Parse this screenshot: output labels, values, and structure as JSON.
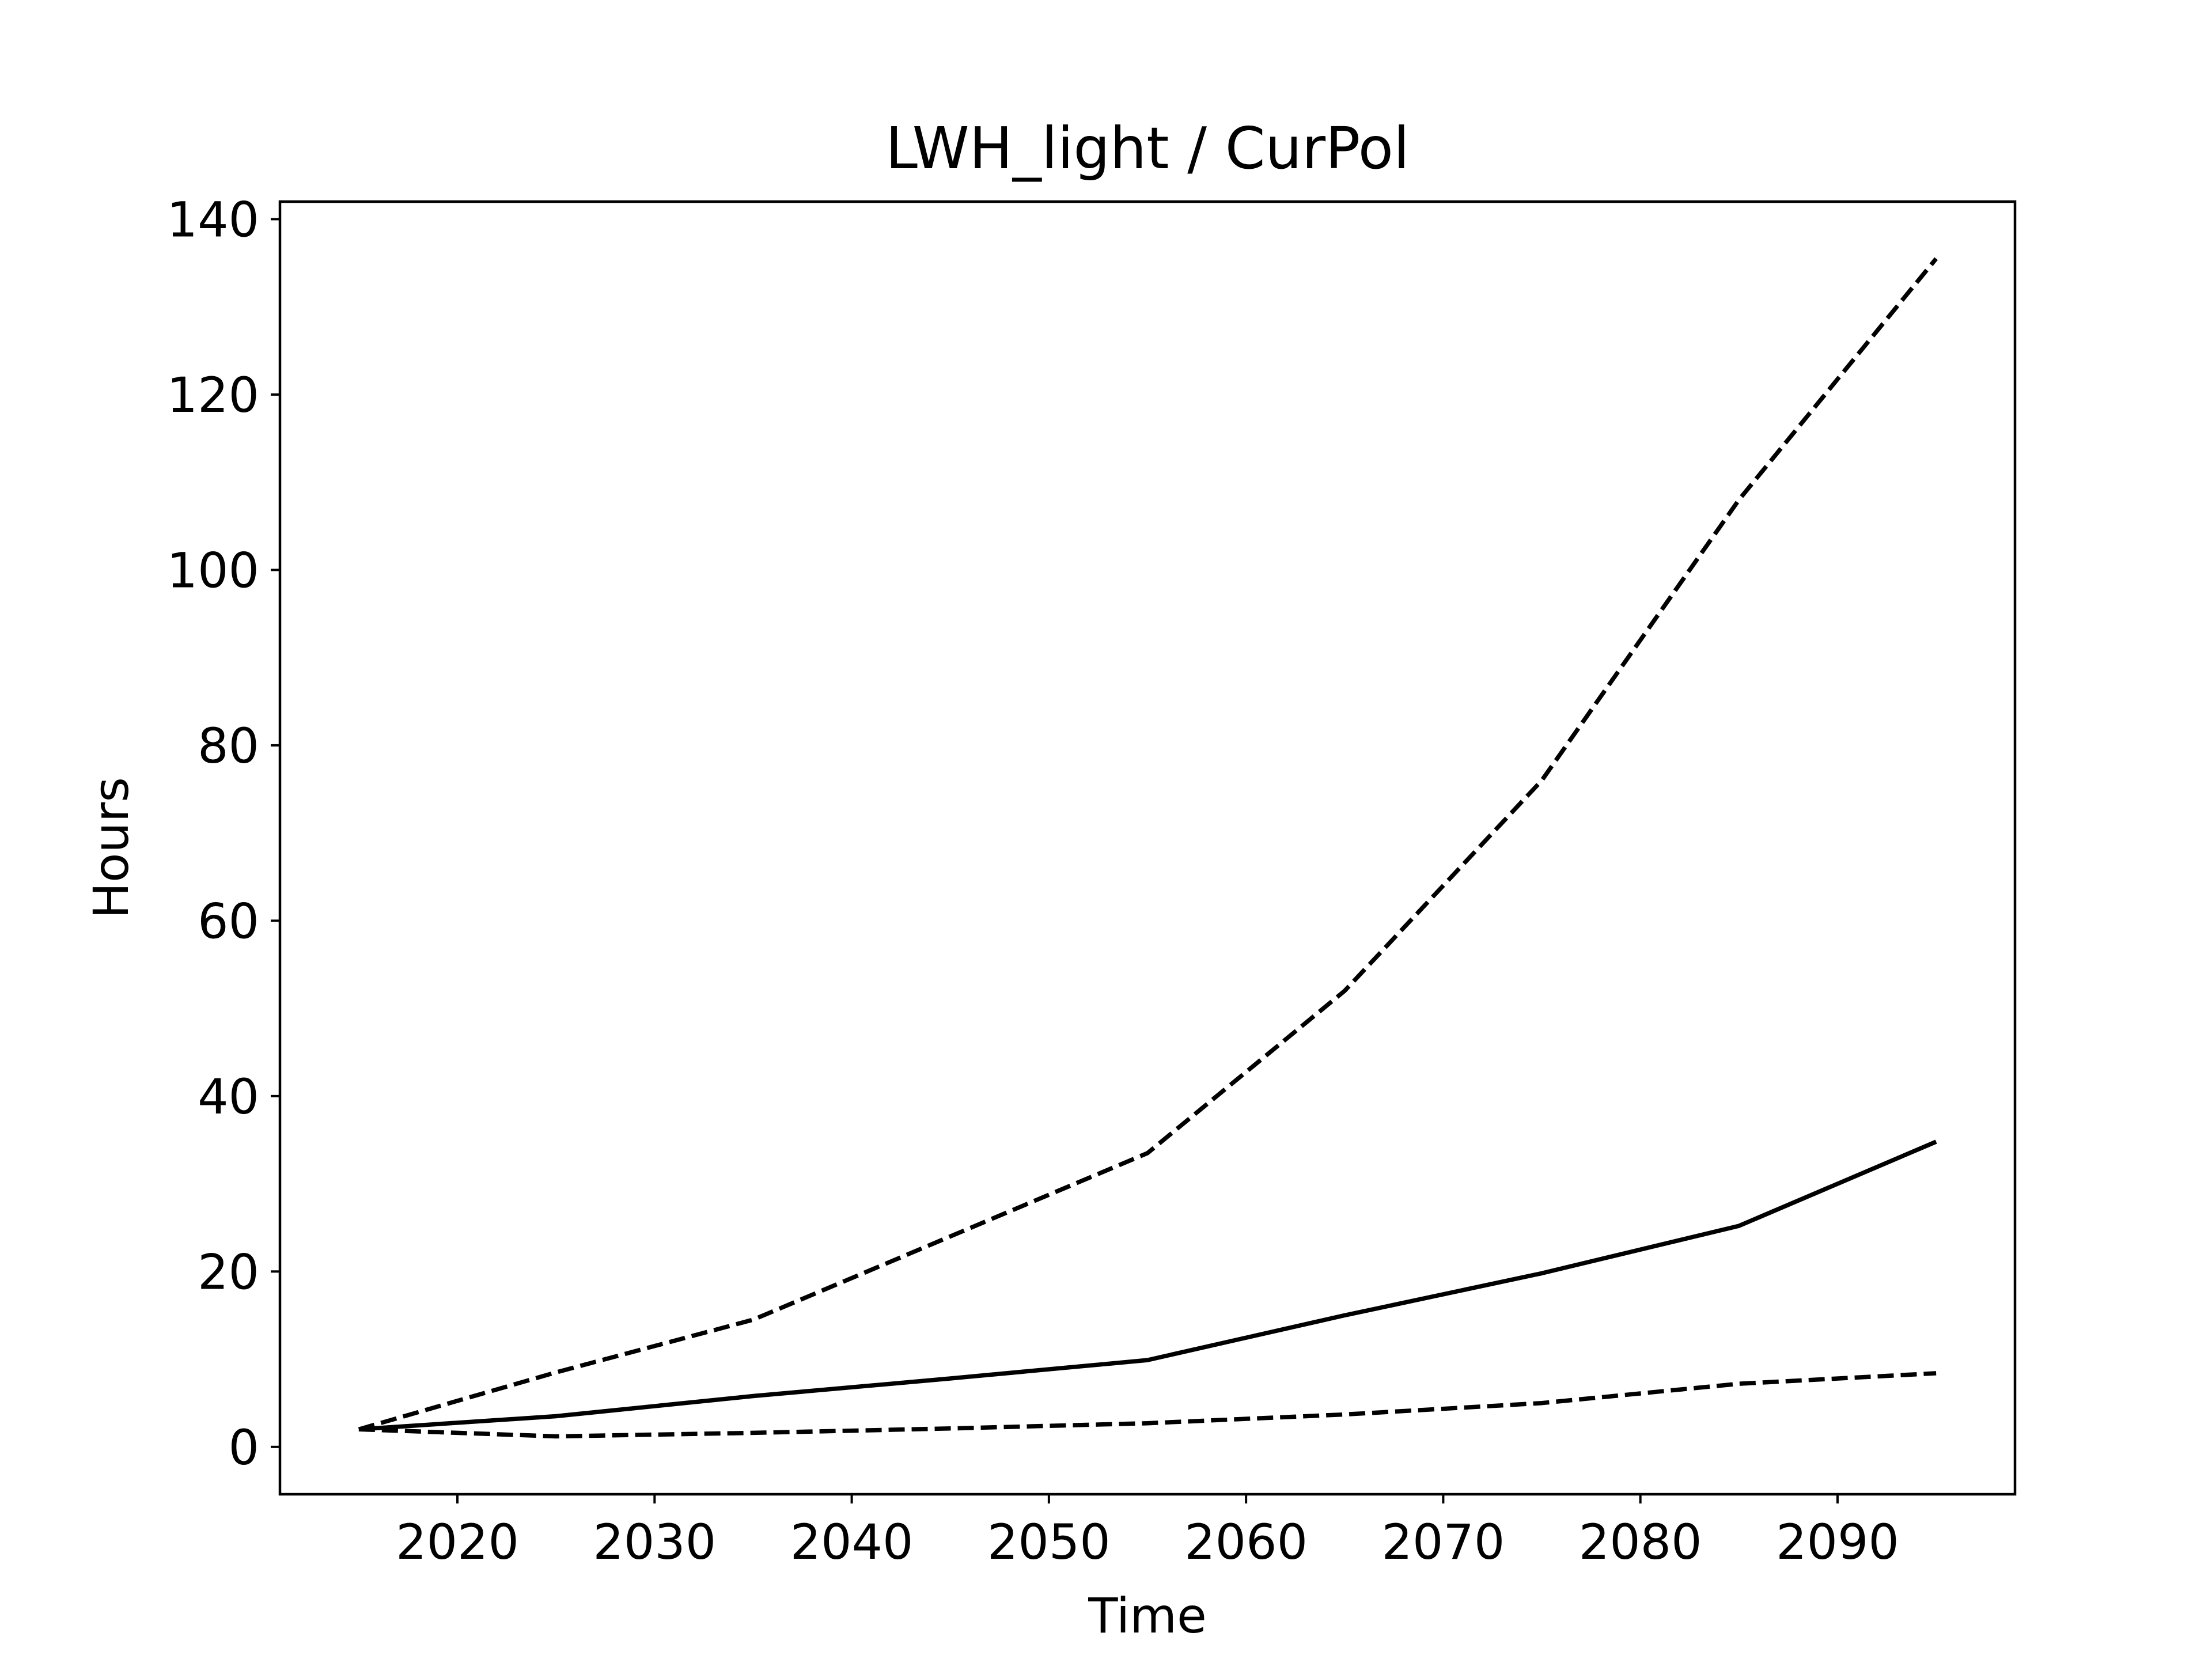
{
  "chart_data": {
    "type": "line",
    "title": "LWH_light / CurPol",
    "xlabel": "Time",
    "ylabel": "Hours",
    "xlim": [
      2011,
      2099
    ],
    "ylim": [
      -5.4,
      142
    ],
    "xticks": [
      2020,
      2030,
      2040,
      2050,
      2060,
      2070,
      2080,
      2090
    ],
    "yticks": [
      0,
      20,
      40,
      60,
      80,
      100,
      120,
      140
    ],
    "grid": false,
    "legend": null,
    "line_color": "#000000",
    "series": [
      {
        "style": "dashed",
        "x": [
          2015,
          2025,
          2035,
          2045,
          2055,
          2065,
          2075,
          2085,
          2095
        ],
        "y": [
          2,
          8.5,
          14.5,
          24,
          33.5,
          52,
          76,
          108,
          135.5
        ]
      },
      {
        "style": "solid",
        "x": [
          2015,
          2025,
          2035,
          2045,
          2055,
          2065,
          2075,
          2085,
          2095
        ],
        "y": [
          2,
          3.5,
          5.8,
          7.8,
          9.9,
          15,
          19.8,
          25.2,
          34.8
        ]
      },
      {
        "style": "dashed",
        "x": [
          2015,
          2025,
          2035,
          2045,
          2055,
          2065,
          2075,
          2085,
          2095
        ],
        "y": [
          2,
          1.2,
          1.6,
          2.1,
          2.7,
          3.7,
          5,
          7.2,
          8.4
        ]
      }
    ]
  }
}
